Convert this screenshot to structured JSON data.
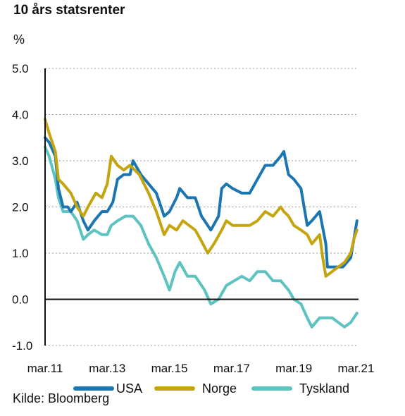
{
  "chart_data": {
    "type": "line",
    "title": "10 års statsrenter",
    "ylabel": "%",
    "source": "Kilde: Bloomberg",
    "ylim": [
      -1.0,
      5.0
    ],
    "yticks": [
      "5.0",
      "4.0",
      "3.0",
      "2.0",
      "1.0",
      "0.0",
      "-1.0"
    ],
    "ytick_values": [
      5,
      4,
      3,
      2,
      1,
      0,
      -1
    ],
    "xlim": [
      2011.17,
      2021.25
    ],
    "xticks": [
      "mar.11",
      "mar.13",
      "mar.15",
      "mar.17",
      "mar.19",
      "mar.21"
    ],
    "xtick_values": [
      2011.17,
      2013.17,
      2015.17,
      2017.17,
      2019.17,
      2021.17
    ],
    "grid": "horizontal dotted",
    "legend": "bottom",
    "series": [
      {
        "name": "USA",
        "color": "#1a75b1",
        "x": [
          2011.17,
          2011.3,
          2011.5,
          2011.6,
          2011.75,
          2011.9,
          2012.0,
          2012.2,
          2012.4,
          2012.55,
          2012.75,
          2013.0,
          2013.17,
          2013.35,
          2013.5,
          2013.7,
          2013.9,
          2014.0,
          2014.25,
          2014.5,
          2014.75,
          2015.0,
          2015.17,
          2015.4,
          2015.5,
          2015.75,
          2016.0,
          2016.2,
          2016.5,
          2016.75,
          2016.85,
          2017.0,
          2017.2,
          2017.5,
          2017.75,
          2018.0,
          2018.25,
          2018.5,
          2018.75,
          2018.85,
          2019.0,
          2019.17,
          2019.4,
          2019.6,
          2019.75,
          2020.0,
          2020.2,
          2020.25,
          2020.5,
          2020.75,
          2021.0,
          2021.1,
          2021.2
        ],
        "values": [
          3.5,
          3.4,
          3.1,
          2.4,
          2.0,
          2.0,
          1.9,
          2.1,
          1.7,
          1.5,
          1.7,
          1.9,
          1.9,
          2.1,
          2.6,
          2.7,
          2.7,
          3.0,
          2.7,
          2.5,
          2.3,
          1.8,
          1.9,
          2.2,
          2.4,
          2.2,
          2.2,
          1.8,
          1.5,
          1.8,
          2.4,
          2.5,
          2.4,
          2.3,
          2.3,
          2.6,
          2.9,
          2.9,
          3.1,
          3.2,
          2.7,
          2.6,
          2.4,
          1.6,
          1.7,
          1.9,
          1.2,
          0.7,
          0.7,
          0.7,
          0.9,
          1.3,
          1.7
        ]
      },
      {
        "name": "Norge",
        "color": "#c4a50f",
        "x": [
          2011.17,
          2011.3,
          2011.5,
          2011.6,
          2011.75,
          2012.0,
          2012.2,
          2012.4,
          2012.55,
          2012.8,
          2013.0,
          2013.17,
          2013.3,
          2013.5,
          2013.7,
          2013.9,
          2014.2,
          2014.5,
          2014.75,
          2015.0,
          2015.17,
          2015.4,
          2015.6,
          2015.8,
          2016.0,
          2016.17,
          2016.4,
          2016.6,
          2016.85,
          2017.0,
          2017.2,
          2017.5,
          2017.75,
          2018.0,
          2018.25,
          2018.5,
          2018.75,
          2018.85,
          2019.0,
          2019.17,
          2019.4,
          2019.6,
          2019.75,
          2020.0,
          2020.1,
          2020.2,
          2020.4,
          2020.6,
          2020.8,
          2021.0,
          2021.1,
          2021.2
        ],
        "values": [
          3.9,
          3.6,
          3.2,
          2.6,
          2.5,
          2.3,
          2.0,
          1.8,
          2.0,
          2.3,
          2.2,
          2.5,
          3.1,
          2.9,
          2.8,
          2.9,
          2.7,
          2.3,
          1.9,
          1.4,
          1.6,
          1.5,
          1.7,
          1.6,
          1.5,
          1.3,
          1.0,
          1.2,
          1.5,
          1.7,
          1.6,
          1.6,
          1.6,
          1.7,
          1.9,
          1.8,
          2.0,
          1.9,
          1.8,
          1.6,
          1.5,
          1.4,
          1.2,
          1.4,
          0.9,
          0.5,
          0.6,
          0.7,
          0.8,
          1.0,
          1.3,
          1.5
        ]
      },
      {
        "name": "Tyskland",
        "color": "#5cc3c0",
        "x": [
          2011.17,
          2011.3,
          2011.5,
          2011.6,
          2011.75,
          2012.0,
          2012.2,
          2012.4,
          2012.55,
          2012.75,
          2013.0,
          2013.17,
          2013.3,
          2013.5,
          2013.75,
          2014.0,
          2014.25,
          2014.5,
          2014.75,
          2015.0,
          2015.17,
          2015.35,
          2015.5,
          2015.75,
          2016.0,
          2016.3,
          2016.5,
          2016.75,
          2017.0,
          2017.25,
          2017.5,
          2017.75,
          2018.0,
          2018.25,
          2018.5,
          2018.75,
          2019.0,
          2019.17,
          2019.4,
          2019.6,
          2019.75,
          2020.0,
          2020.17,
          2020.4,
          2020.6,
          2020.8,
          2021.0,
          2021.1,
          2021.2
        ],
        "values": [
          3.3,
          3.1,
          2.6,
          2.2,
          1.9,
          1.9,
          1.7,
          1.3,
          1.4,
          1.5,
          1.4,
          1.4,
          1.6,
          1.7,
          1.8,
          1.8,
          1.6,
          1.2,
          0.9,
          0.5,
          0.2,
          0.6,
          0.8,
          0.5,
          0.5,
          0.2,
          -0.1,
          0.0,
          0.3,
          0.4,
          0.5,
          0.4,
          0.6,
          0.6,
          0.4,
          0.4,
          0.2,
          0.0,
          -0.1,
          -0.4,
          -0.6,
          -0.4,
          -0.4,
          -0.4,
          -0.5,
          -0.6,
          -0.5,
          -0.4,
          -0.3
        ]
      }
    ]
  }
}
